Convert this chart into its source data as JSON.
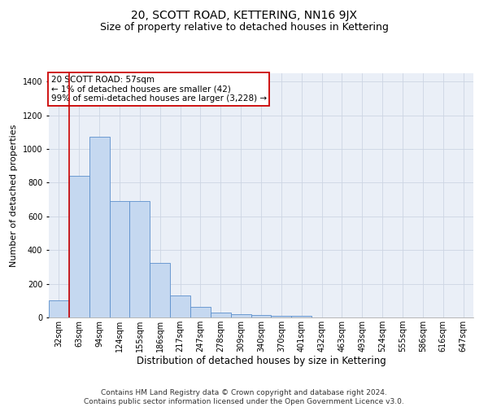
{
  "title": "20, SCOTT ROAD, KETTERING, NN16 9JX",
  "subtitle": "Size of property relative to detached houses in Kettering",
  "xlabel": "Distribution of detached houses by size in Kettering",
  "ylabel": "Number of detached properties",
  "categories": [
    "32sqm",
    "63sqm",
    "94sqm",
    "124sqm",
    "155sqm",
    "186sqm",
    "217sqm",
    "247sqm",
    "278sqm",
    "309sqm",
    "340sqm",
    "370sqm",
    "401sqm",
    "432sqm",
    "463sqm",
    "493sqm",
    "524sqm",
    "555sqm",
    "586sqm",
    "616sqm",
    "647sqm"
  ],
  "values": [
    100,
    840,
    1075,
    690,
    690,
    325,
    130,
    65,
    30,
    20,
    15,
    10,
    10,
    0,
    0,
    0,
    0,
    0,
    0,
    0,
    0
  ],
  "bar_color": "#c5d8f0",
  "bar_edge_color": "#5b8fcc",
  "highlight_line_color": "#cc0000",
  "highlight_bar_index": 1,
  "annotation_text": "20 SCOTT ROAD: 57sqm\n← 1% of detached houses are smaller (42)\n99% of semi-detached houses are larger (3,228) →",
  "annotation_box_color": "#ffffff",
  "annotation_box_edge": "#cc0000",
  "ylim": [
    0,
    1450
  ],
  "yticks": [
    0,
    200,
    400,
    600,
    800,
    1000,
    1200,
    1400
  ],
  "grid_color": "#cdd5e3",
  "bg_color": "#eaeff7",
  "footer": "Contains HM Land Registry data © Crown copyright and database right 2024.\nContains public sector information licensed under the Open Government Licence v3.0.",
  "title_fontsize": 10,
  "subtitle_fontsize": 9,
  "ylabel_fontsize": 8,
  "xlabel_fontsize": 8.5,
  "tick_fontsize": 7,
  "annotation_fontsize": 7.5,
  "footer_fontsize": 6.5
}
